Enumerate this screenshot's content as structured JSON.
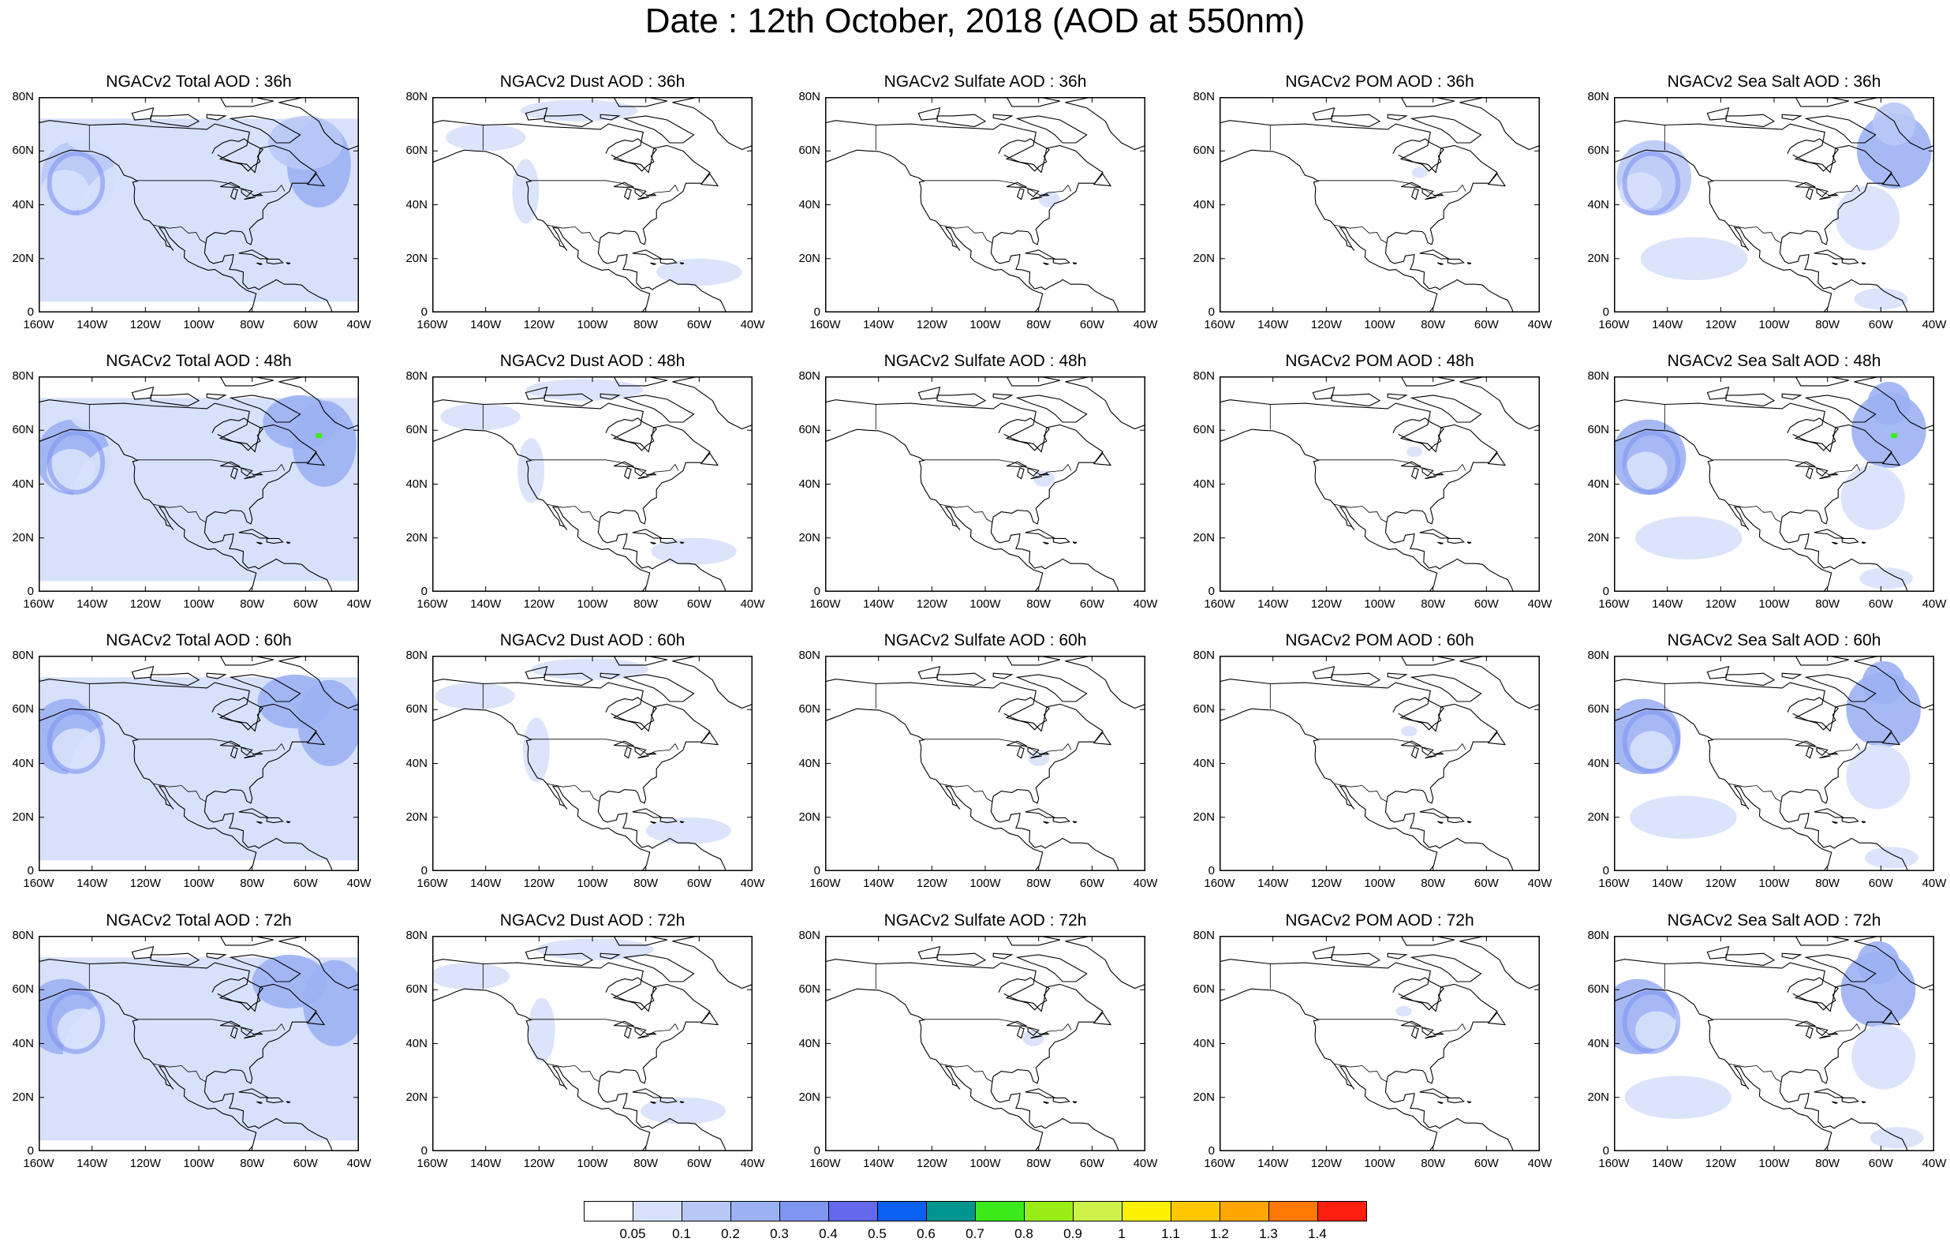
{
  "title": "Date : 12th October, 2018 (AOD at 550nm)",
  "axis": {
    "x_ticks": [
      "160W",
      "140W",
      "120W",
      "100W",
      "80W",
      "60W",
      "40W"
    ],
    "y_ticks": [
      "80N",
      "60N",
      "40N",
      "20N",
      "0"
    ]
  },
  "rows": [
    {
      "forecast_hour": "36h",
      "panels": [
        {
          "title": "NGACv2 Total AOD : 36h",
          "type": "total",
          "intensity": 0.9
        },
        {
          "title": "NGACv2 Dust AOD : 36h",
          "type": "dust",
          "intensity": 0.6
        },
        {
          "title": "NGACv2 Sulfate AOD : 36h",
          "type": "sulfate",
          "intensity": 0.2
        },
        {
          "title": "NGACv2 POM AOD : 36h",
          "type": "pom",
          "intensity": 0.1
        },
        {
          "title": "NGACv2 Sea Salt AOD : 36h",
          "type": "seasalt",
          "intensity": 0.9
        }
      ]
    },
    {
      "forecast_hour": "48h",
      "panels": [
        {
          "title": "NGACv2 Total AOD : 48h",
          "type": "total",
          "intensity": 1.0
        },
        {
          "title": "NGACv2 Dust AOD : 48h",
          "type": "dust",
          "intensity": 0.7
        },
        {
          "title": "NGACv2 Sulfate AOD : 48h",
          "type": "sulfate",
          "intensity": 0.3
        },
        {
          "title": "NGACv2 POM AOD : 48h",
          "type": "pom",
          "intensity": 0.15
        },
        {
          "title": "NGACv2 Sea Salt AOD : 48h",
          "type": "seasalt",
          "intensity": 1.0
        }
      ]
    },
    {
      "forecast_hour": "60h",
      "panels": [
        {
          "title": "NGACv2 Total AOD : 60h",
          "type": "total",
          "intensity": 1.0
        },
        {
          "title": "NGACv2 Dust AOD : 60h",
          "type": "dust",
          "intensity": 0.7
        },
        {
          "title": "NGACv2 Sulfate AOD : 60h",
          "type": "sulfate",
          "intensity": 0.25
        },
        {
          "title": "NGACv2 POM AOD : 60h",
          "type": "pom",
          "intensity": 0.15
        },
        {
          "title": "NGACv2 Sea Salt AOD : 60h",
          "type": "seasalt",
          "intensity": 1.0
        }
      ]
    },
    {
      "forecast_hour": "72h",
      "panels": [
        {
          "title": "NGACv2 Total AOD : 72h",
          "type": "total",
          "intensity": 1.0
        },
        {
          "title": "NGACv2 Dust AOD : 72h",
          "type": "dust",
          "intensity": 0.7
        },
        {
          "title": "NGACv2 Sulfate AOD : 72h",
          "type": "sulfate",
          "intensity": 0.25
        },
        {
          "title": "NGACv2 POM AOD : 72h",
          "type": "pom",
          "intensity": 0.15
        },
        {
          "title": "NGACv2 Sea Salt  AOD : 72h",
          "type": "seasalt",
          "intensity": 1.0
        }
      ]
    }
  ],
  "colorbar": {
    "labels": [
      "0.05",
      "0.1",
      "0.2",
      "0.3",
      "0.4",
      "0.5",
      "0.6",
      "0.7",
      "0.8",
      "0.9",
      "1",
      "1.1",
      "1.2",
      "1.3",
      "1.4"
    ],
    "colors": [
      "#ffffff",
      "#d7e1fb",
      "#b8c8f6",
      "#9cb1f3",
      "#8095f0",
      "#6468ea",
      "#0a60f0",
      "#00948f",
      "#3ce91a",
      "#98ee14",
      "#cdf24a",
      "#fff200",
      "#ffc700",
      "#ffa700",
      "#ff7800",
      "#ff1e10"
    ]
  }
}
